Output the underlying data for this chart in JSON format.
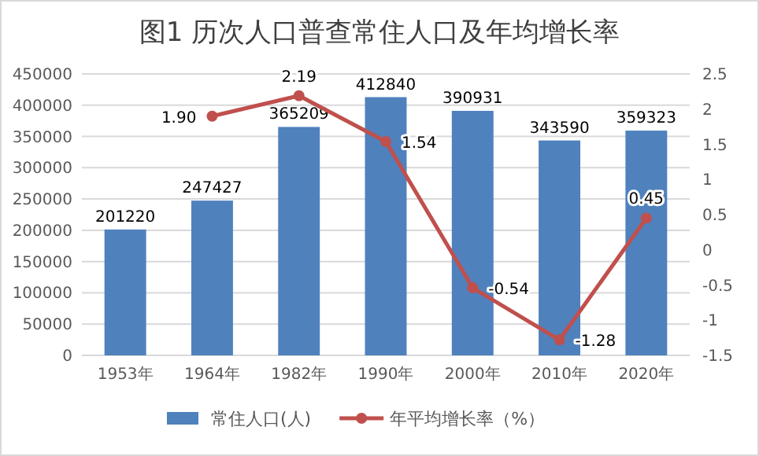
{
  "chart_data": {
    "type": "bar",
    "title": "图1 历次人口普查常住人口及年均增长率",
    "categories": [
      "1953年",
      "1964年",
      "1982年",
      "1990年",
      "2000年",
      "2010年",
      "2020年"
    ],
    "series": [
      {
        "name": "常住人口(人)",
        "color": "#4f81bd",
        "values": [
          201220,
          247427,
          365209,
          412840,
          390931,
          343590,
          359323
        ],
        "value_labels": [
          "201220",
          "247427",
          "365209",
          "412840",
          "390931",
          "343590",
          "359323"
        ]
      },
      {
        "name": "年平均增长率（%）",
        "type": "line",
        "axis": "y2",
        "color": "#c0504d",
        "marker": "circle",
        "values": [
          null,
          1.9,
          2.19,
          1.54,
          -0.54,
          -1.28,
          0.45
        ],
        "value_labels": [
          null,
          "1.90",
          "2.19",
          "1.54",
          "-0.54",
          "-1.28",
          "0.45"
        ]
      }
    ],
    "ylim": [
      0,
      450000
    ],
    "yticks": [
      0,
      50000,
      100000,
      150000,
      200000,
      250000,
      300000,
      350000,
      400000,
      450000
    ],
    "y2lim": [
      -1.5,
      2.5
    ],
    "y2ticks": [
      -1.5,
      -1,
      -0.5,
      0,
      0.5,
      1,
      1.5,
      2,
      2.5
    ],
    "grid": "y",
    "legend": "bottom"
  }
}
